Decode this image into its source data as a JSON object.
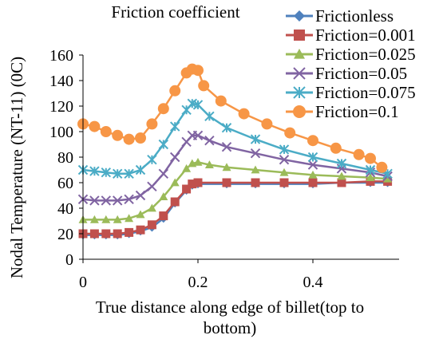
{
  "chart_data": {
    "type": "line",
    "title": "Friction coefficient",
    "xlabel": "True distance along edge of billet(top to bottom)",
    "ylabel": "Nodal Temperature (NT-11) (0C)",
    "xlim": [
      0,
      0.55
    ],
    "ylim": [
      0,
      160
    ],
    "xticks": [
      "0",
      "0.2",
      "0.4"
    ],
    "xtick_values": [
      0,
      0.2,
      0.4
    ],
    "yticks": [
      "0",
      "20",
      "40",
      "60",
      "80",
      "100",
      "120",
      "140",
      "160"
    ],
    "ytick_values": [
      0,
      20,
      40,
      60,
      80,
      100,
      120,
      140,
      160
    ],
    "grid": false,
    "legend_position": "top-right",
    "series": [
      {
        "name": "Frictionless",
        "color": "#4f81bd",
        "marker": "diamond",
        "points": [
          [
            0,
            19
          ],
          [
            0.02,
            19
          ],
          [
            0.04,
            19
          ],
          [
            0.06,
            19
          ],
          [
            0.08,
            20
          ],
          [
            0.1,
            22
          ],
          [
            0.12,
            25
          ],
          [
            0.14,
            32
          ],
          [
            0.16,
            44
          ],
          [
            0.18,
            54
          ],
          [
            0.19,
            58
          ],
          [
            0.2,
            59
          ],
          [
            0.25,
            59
          ],
          [
            0.3,
            59
          ],
          [
            0.35,
            59
          ],
          [
            0.4,
            59
          ],
          [
            0.45,
            60
          ],
          [
            0.5,
            60
          ],
          [
            0.53,
            60
          ]
        ]
      },
      {
        "name": "Friction=0.001",
        "color": "#c0504d",
        "marker": "square",
        "points": [
          [
            0,
            20
          ],
          [
            0.02,
            20
          ],
          [
            0.04,
            20
          ],
          [
            0.06,
            20
          ],
          [
            0.08,
            21
          ],
          [
            0.1,
            23
          ],
          [
            0.12,
            27
          ],
          [
            0.14,
            34
          ],
          [
            0.16,
            45
          ],
          [
            0.18,
            55
          ],
          [
            0.19,
            59
          ],
          [
            0.2,
            60
          ],
          [
            0.25,
            60
          ],
          [
            0.3,
            60
          ],
          [
            0.35,
            60
          ],
          [
            0.4,
            60
          ],
          [
            0.45,
            60
          ],
          [
            0.5,
            61
          ],
          [
            0.53,
            61
          ]
        ]
      },
      {
        "name": "Friction=0.025",
        "color": "#9bbb59",
        "marker": "triangle",
        "points": [
          [
            0,
            31
          ],
          [
            0.02,
            31
          ],
          [
            0.04,
            31
          ],
          [
            0.06,
            31
          ],
          [
            0.08,
            32
          ],
          [
            0.1,
            35
          ],
          [
            0.12,
            40
          ],
          [
            0.14,
            49
          ],
          [
            0.16,
            60
          ],
          [
            0.18,
            71
          ],
          [
            0.19,
            75
          ],
          [
            0.2,
            76
          ],
          [
            0.22,
            74
          ],
          [
            0.25,
            72
          ],
          [
            0.3,
            70
          ],
          [
            0.35,
            68
          ],
          [
            0.4,
            66
          ],
          [
            0.45,
            65
          ],
          [
            0.5,
            64
          ],
          [
            0.53,
            63
          ]
        ]
      },
      {
        "name": "Friction=0.05",
        "color": "#8064a2",
        "marker": "x",
        "points": [
          [
            0,
            47
          ],
          [
            0.02,
            46
          ],
          [
            0.04,
            46
          ],
          [
            0.06,
            46
          ],
          [
            0.08,
            47
          ],
          [
            0.1,
            50
          ],
          [
            0.12,
            57
          ],
          [
            0.14,
            67
          ],
          [
            0.16,
            80
          ],
          [
            0.18,
            92
          ],
          [
            0.19,
            97
          ],
          [
            0.2,
            97
          ],
          [
            0.22,
            93
          ],
          [
            0.25,
            88
          ],
          [
            0.3,
            83
          ],
          [
            0.35,
            78
          ],
          [
            0.4,
            74
          ],
          [
            0.45,
            71
          ],
          [
            0.5,
            68
          ],
          [
            0.53,
            65
          ]
        ]
      },
      {
        "name": "Friction=0.075",
        "color": "#4bacc6",
        "marker": "star",
        "points": [
          [
            0,
            70
          ],
          [
            0.02,
            69
          ],
          [
            0.04,
            68
          ],
          [
            0.06,
            67
          ],
          [
            0.08,
            67
          ],
          [
            0.1,
            70
          ],
          [
            0.12,
            78
          ],
          [
            0.14,
            90
          ],
          [
            0.16,
            104
          ],
          [
            0.18,
            117
          ],
          [
            0.19,
            122
          ],
          [
            0.2,
            121
          ],
          [
            0.22,
            112
          ],
          [
            0.25,
            103
          ],
          [
            0.3,
            94
          ],
          [
            0.35,
            86
          ],
          [
            0.4,
            80
          ],
          [
            0.45,
            75
          ],
          [
            0.5,
            70
          ],
          [
            0.53,
            67
          ]
        ]
      },
      {
        "name": "Friction=0.1",
        "color": "#f79646",
        "marker": "circle",
        "points": [
          [
            0,
            106
          ],
          [
            0.02,
            104
          ],
          [
            0.04,
            100
          ],
          [
            0.06,
            97
          ],
          [
            0.08,
            94
          ],
          [
            0.1,
            95
          ],
          [
            0.12,
            106
          ],
          [
            0.14,
            118
          ],
          [
            0.16,
            132
          ],
          [
            0.18,
            146
          ],
          [
            0.19,
            149
          ],
          [
            0.2,
            148
          ],
          [
            0.21,
            136
          ],
          [
            0.24,
            124
          ],
          [
            0.28,
            114
          ],
          [
            0.32,
            106
          ],
          [
            0.36,
            99
          ],
          [
            0.4,
            93
          ],
          [
            0.44,
            87
          ],
          [
            0.48,
            82
          ],
          [
            0.5,
            79
          ],
          [
            0.52,
            72
          ]
        ]
      }
    ]
  }
}
